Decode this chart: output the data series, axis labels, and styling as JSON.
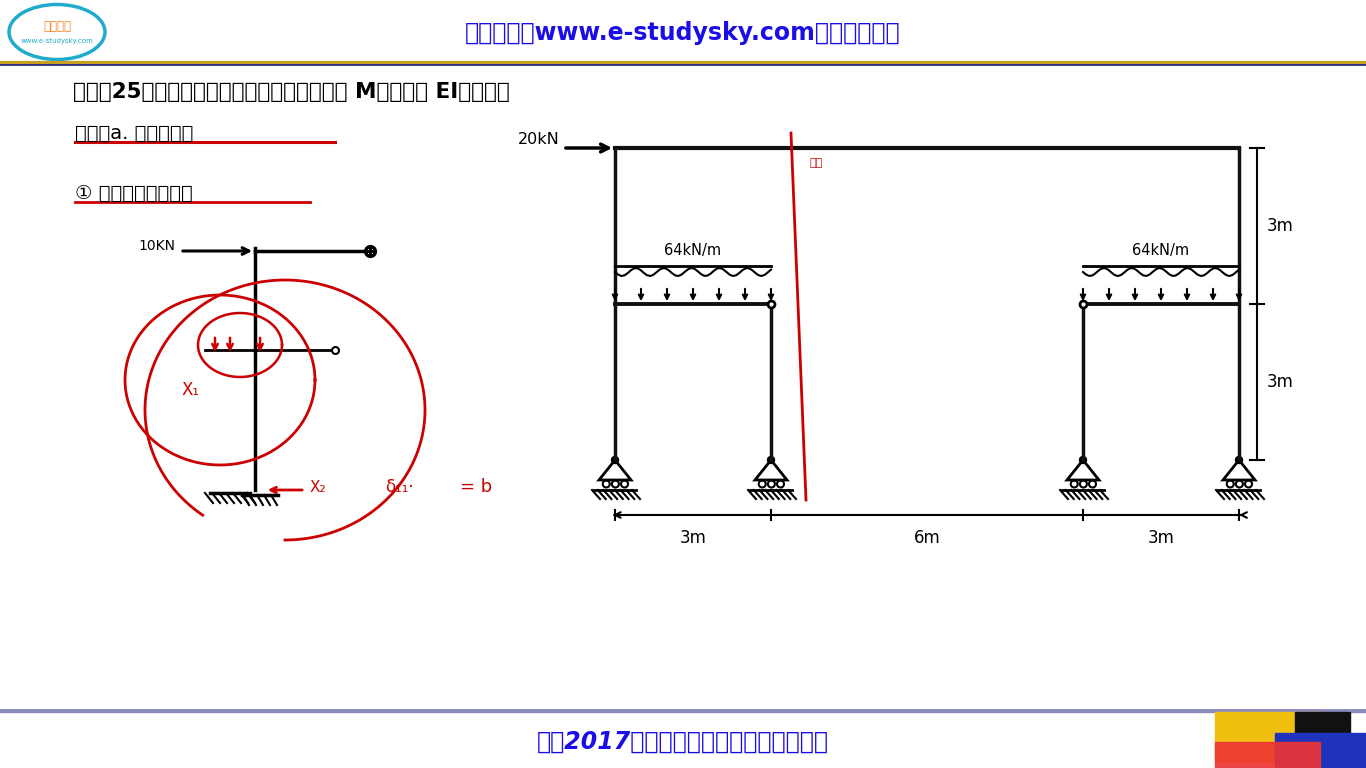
{
  "bg_color": "#ffffff",
  "header_text": "网学天地（www.e-studysky.com）版权所有！",
  "header_text_color": "#1a0de8",
  "footer_text": "西刹2017年《结构力学》考研真题与详解",
  "footer_text_color": "#1a0de8",
  "logo_orange": "#f08020",
  "logo_cyan": "#20aacc",
  "gold_line": "#c8a020",
  "dark_blue_line": "#1a1a8a",
  "struct_color": "#111111",
  "red_color": "#cc0000",
  "title_text": "二、（25分）用力法求解图示对称结构并作其 M图。各杆 EI为常数。",
  "analysis_text": "解析：a. 取正对称。",
  "step1_text": "① 取力法基本体系：",
  "yellow_color": "#f5c518",
  "blue_dark": "#2233cc",
  "red_bright": "#ee3333"
}
